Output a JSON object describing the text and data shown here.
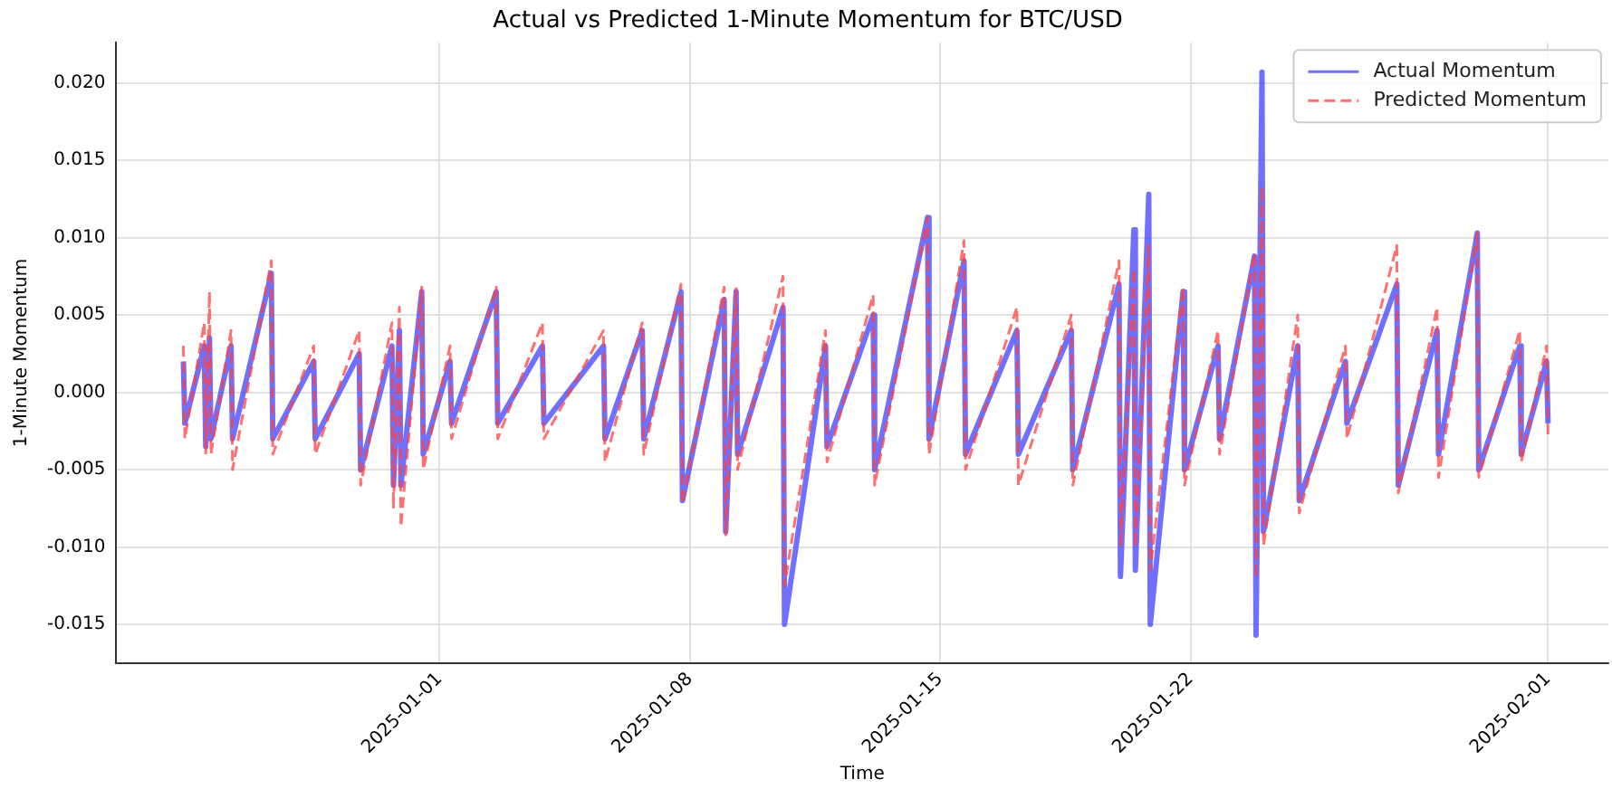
{
  "chart_data": {
    "type": "line",
    "title": "Actual vs Predicted 1-Minute Momentum for BTC/USD",
    "xlabel": "Time",
    "ylabel": "1-Minute Momentum",
    "x": [
      "2024-12-24T20:00",
      "2024-12-24T21:00",
      "2024-12-25T10:00",
      "2024-12-25T11:00",
      "2024-12-25T13:30",
      "2024-12-25T14:30",
      "2024-12-26T04:00",
      "2024-12-26T05:00",
      "2024-12-27T07:00",
      "2024-12-27T08:00",
      "2024-12-28T11:30",
      "2024-12-28T12:30",
      "2024-12-29T18:00",
      "2024-12-29T19:00",
      "2024-12-30T16:00",
      "2024-12-30T17:00",
      "2024-12-30T21:00",
      "2024-12-30T22:00",
      "2024-12-31T12:00",
      "2024-12-31T13:00",
      "2025-01-01T07:00",
      "2025-01-01T08:00",
      "2025-01-02T14:00",
      "2025-01-02T15:00",
      "2025-01-03T21:00",
      "2025-01-03T22:00",
      "2025-01-05T14:00",
      "2025-01-05T15:00",
      "2025-01-06T16:00",
      "2025-01-06T17:00",
      "2025-01-07T18:00",
      "2025-01-07T19:00",
      "2025-01-08T23:00",
      "2025-01-09T00:00",
      "2025-01-09T07:00",
      "2025-01-09T08:00",
      "2025-01-10T14:30",
      "2025-01-10T15:30",
      "2025-01-11T19:00",
      "2025-01-11T20:00",
      "2025-01-13T03:00",
      "2025-01-13T04:00",
      "2025-01-14T15:30",
      "2025-01-14T16:30",
      "2025-01-15T16:00",
      "2025-01-15T17:00",
      "2025-01-17T03:30",
      "2025-01-17T04:30",
      "2025-01-18T16:00",
      "2025-01-18T17:00",
      "2025-01-20T00:00",
      "2025-01-20T01:00",
      "2025-01-20T10:00",
      "2025-01-20T11:00",
      "2025-01-20T20:00",
      "2025-01-20T21:00",
      "2025-01-21T19:00",
      "2025-01-21T20:00",
      "2025-01-22T18:30",
      "2025-01-22T19:30",
      "2025-01-23T19:00",
      "2025-01-23T20:00",
      "2025-01-24T00:00",
      "2025-01-24T01:00",
      "2025-01-25T00:00",
      "2025-01-25T01:00",
      "2025-01-26T08:00",
      "2025-01-26T09:00",
      "2025-01-27T18:30",
      "2025-01-27T19:30",
      "2025-01-28T21:30",
      "2025-01-28T22:30",
      "2025-01-30T00:30",
      "2025-01-30T01:30",
      "2025-01-31T05:00",
      "2025-01-31T06:00",
      "2025-01-31T23:00",
      "2025-02-01T00:00"
    ],
    "series": [
      {
        "name": "Actual Momentum",
        "color": "#4040ff",
        "line_style": "solid",
        "values": [
          0.002,
          -0.002,
          0.003,
          -0.0035,
          0.0035,
          -0.003,
          0.003,
          -0.003,
          0.0077,
          -0.003,
          0.002,
          -0.003,
          0.0025,
          -0.005,
          0.003,
          -0.006,
          0.004,
          -0.006,
          0.0065,
          -0.004,
          0.002,
          -0.002,
          0.0065,
          -0.002,
          0.003,
          -0.002,
          0.003,
          -0.003,
          0.004,
          -0.003,
          0.0065,
          -0.007,
          0.006,
          -0.009,
          0.0065,
          -0.004,
          0.0055,
          -0.015,
          0.003,
          -0.0035,
          0.005,
          -0.005,
          0.0113,
          -0.003,
          0.0085,
          -0.004,
          0.004,
          -0.004,
          0.004,
          -0.005,
          0.007,
          -0.0119,
          0.0105,
          -0.0115,
          0.0128,
          -0.015,
          0.0065,
          -0.005,
          0.003,
          -0.003,
          0.0088,
          -0.0157,
          0.0207,
          -0.009,
          0.003,
          -0.007,
          0.002,
          -0.002,
          0.007,
          -0.006,
          0.004,
          -0.004,
          0.0103,
          -0.005,
          0.003,
          -0.004,
          0.002,
          -0.002
        ]
      },
      {
        "name": "Predicted Momentum",
        "color": "#ff4040",
        "line_style": "dashed",
        "values": [
          0.003,
          -0.003,
          0.0045,
          -0.004,
          0.0065,
          -0.004,
          0.004,
          -0.005,
          0.0085,
          -0.004,
          0.003,
          -0.004,
          0.004,
          -0.006,
          0.0045,
          -0.0075,
          0.0055,
          -0.0087,
          0.0068,
          -0.005,
          0.003,
          -0.003,
          0.0068,
          -0.003,
          0.0045,
          -0.003,
          0.004,
          -0.0045,
          0.0045,
          -0.004,
          0.007,
          -0.0072,
          0.0068,
          -0.0093,
          0.0068,
          -0.005,
          0.0075,
          -0.0125,
          0.004,
          -0.0045,
          0.0063,
          -0.006,
          0.0113,
          -0.004,
          0.0098,
          -0.005,
          0.0055,
          -0.006,
          0.005,
          -0.006,
          0.0085,
          -0.01,
          0.008,
          -0.01,
          0.0095,
          -0.0115,
          0.0068,
          -0.006,
          0.004,
          -0.004,
          0.009,
          -0.012,
          0.0133,
          -0.0099,
          0.005,
          -0.0078,
          0.003,
          -0.003,
          0.0095,
          -0.0065,
          0.0055,
          -0.0055,
          0.0103,
          -0.0055,
          0.004,
          -0.0045,
          0.003,
          -0.003
        ]
      }
    ],
    "xlim": [
      "2024-12-22T23:00",
      "2025-02-02T16:30"
    ],
    "xticks": [
      "2025-01-01",
      "2025-01-08",
      "2025-01-15",
      "2025-01-22",
      "2025-02-01"
    ],
    "ylim": [
      -0.0175,
      0.0226
    ],
    "yticks": [
      {
        "value": -0.015,
        "label": "-0.015"
      },
      {
        "value": -0.01,
        "label": "-0.010"
      },
      {
        "value": -0.005,
        "label": "-0.005"
      },
      {
        "value": 0,
        "label": "0.000"
      },
      {
        "value": 0.005,
        "label": "0.005"
      },
      {
        "value": 0.01,
        "label": "0.010"
      },
      {
        "value": 0.015,
        "label": "0.015"
      },
      {
        "value": 0.02,
        "label": "0.020"
      }
    ],
    "grid": true,
    "legend": "top right"
  }
}
